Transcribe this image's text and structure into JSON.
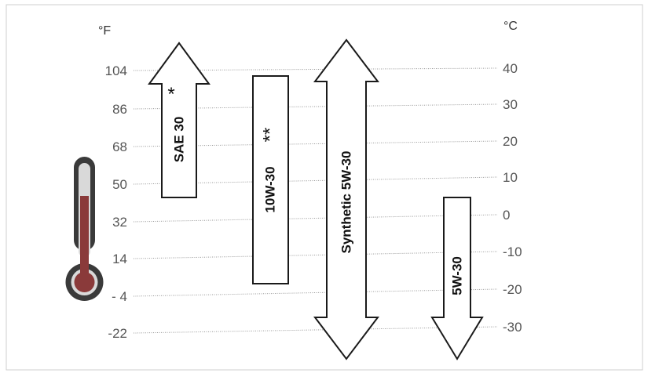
{
  "units": {
    "fahrenheit": "°F",
    "celsius": "°C"
  },
  "fahrenheit_ticks": [
    "104",
    "86",
    "68",
    "50",
    "32",
    "14",
    "- 4",
    "-22"
  ],
  "celsius_ticks": [
    "40",
    "30",
    "20",
    "10",
    "0",
    "-10",
    "-20",
    "-30"
  ],
  "oils": {
    "sae30": {
      "label": "SAE 30",
      "mark": "*"
    },
    "10w30": {
      "label": "10W-30",
      "mark": "**"
    },
    "synthetic": {
      "label": "Synthetic 5W-30"
    },
    "5w30": {
      "label": "5W-30"
    }
  },
  "icons": [
    "thermometer-icon"
  ]
}
